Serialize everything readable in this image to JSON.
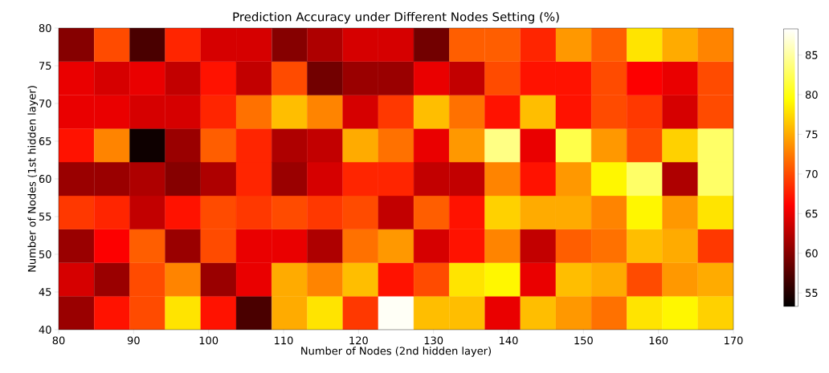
{
  "chart_data": {
    "type": "heatmap",
    "title": "Prediction Accuracy under Different Nodes Setting (%)",
    "xlabel": "Number of Nodes (2nd hidden layer)",
    "ylabel": "Number of Nodes (1st hidden layer)",
    "xlim": [
      80,
      170
    ],
    "xticks": [
      80,
      90,
      100,
      110,
      120,
      130,
      140,
      150,
      160,
      170
    ],
    "ylim": [
      40,
      80
    ],
    "yticks": [
      40,
      45,
      50,
      55,
      60,
      65,
      70,
      75,
      80
    ],
    "clim": [
      53.3,
      88.3
    ],
    "cticks": [
      55,
      60,
      65,
      70,
      75,
      80,
      85
    ],
    "cells": [
      [
        60,
        70,
        57,
        68,
        64,
        64,
        60,
        62,
        64,
        64,
        59,
        71,
        71,
        68,
        74,
        71,
        78,
        75,
        73
      ],
      [
        65,
        64,
        65,
        63,
        67,
        63,
        70,
        59,
        61,
        61,
        65,
        63,
        70,
        67,
        67,
        70,
        66,
        65,
        70
      ],
      [
        65,
        65,
        64,
        64,
        68,
        72,
        76,
        73,
        64,
        69,
        76,
        72,
        67,
        76,
        67,
        70,
        69,
        64,
        70
      ],
      [
        67,
        73,
        54,
        61,
        71,
        68,
        62,
        63,
        75,
        72,
        65,
        74,
        84,
        65,
        82,
        74,
        70,
        77,
        83
      ],
      [
        61,
        61,
        62,
        60,
        62,
        68,
        61,
        64,
        68,
        68,
        63,
        63,
        73,
        67,
        74,
        79,
        83,
        62,
        83
      ],
      [
        69,
        68,
        63,
        67,
        70,
        69,
        70,
        69,
        70,
        63,
        71,
        67,
        77,
        75,
        75,
        73,
        79,
        74,
        78
      ],
      [
        61,
        66,
        71,
        61,
        70,
        65,
        65,
        62,
        72,
        74,
        64,
        67,
        73,
        63,
        71,
        72,
        76,
        75,
        69
      ],
      [
        64,
        61,
        70,
        73,
        61,
        65,
        75,
        73,
        76,
        67,
        70,
        78,
        79,
        65,
        76,
        75,
        70,
        74,
        75
      ],
      [
        61,
        67,
        70,
        78,
        67,
        57,
        75,
        78,
        69,
        88,
        76,
        76,
        65,
        76,
        74,
        72,
        78,
        79,
        77
      ]
    ]
  }
}
